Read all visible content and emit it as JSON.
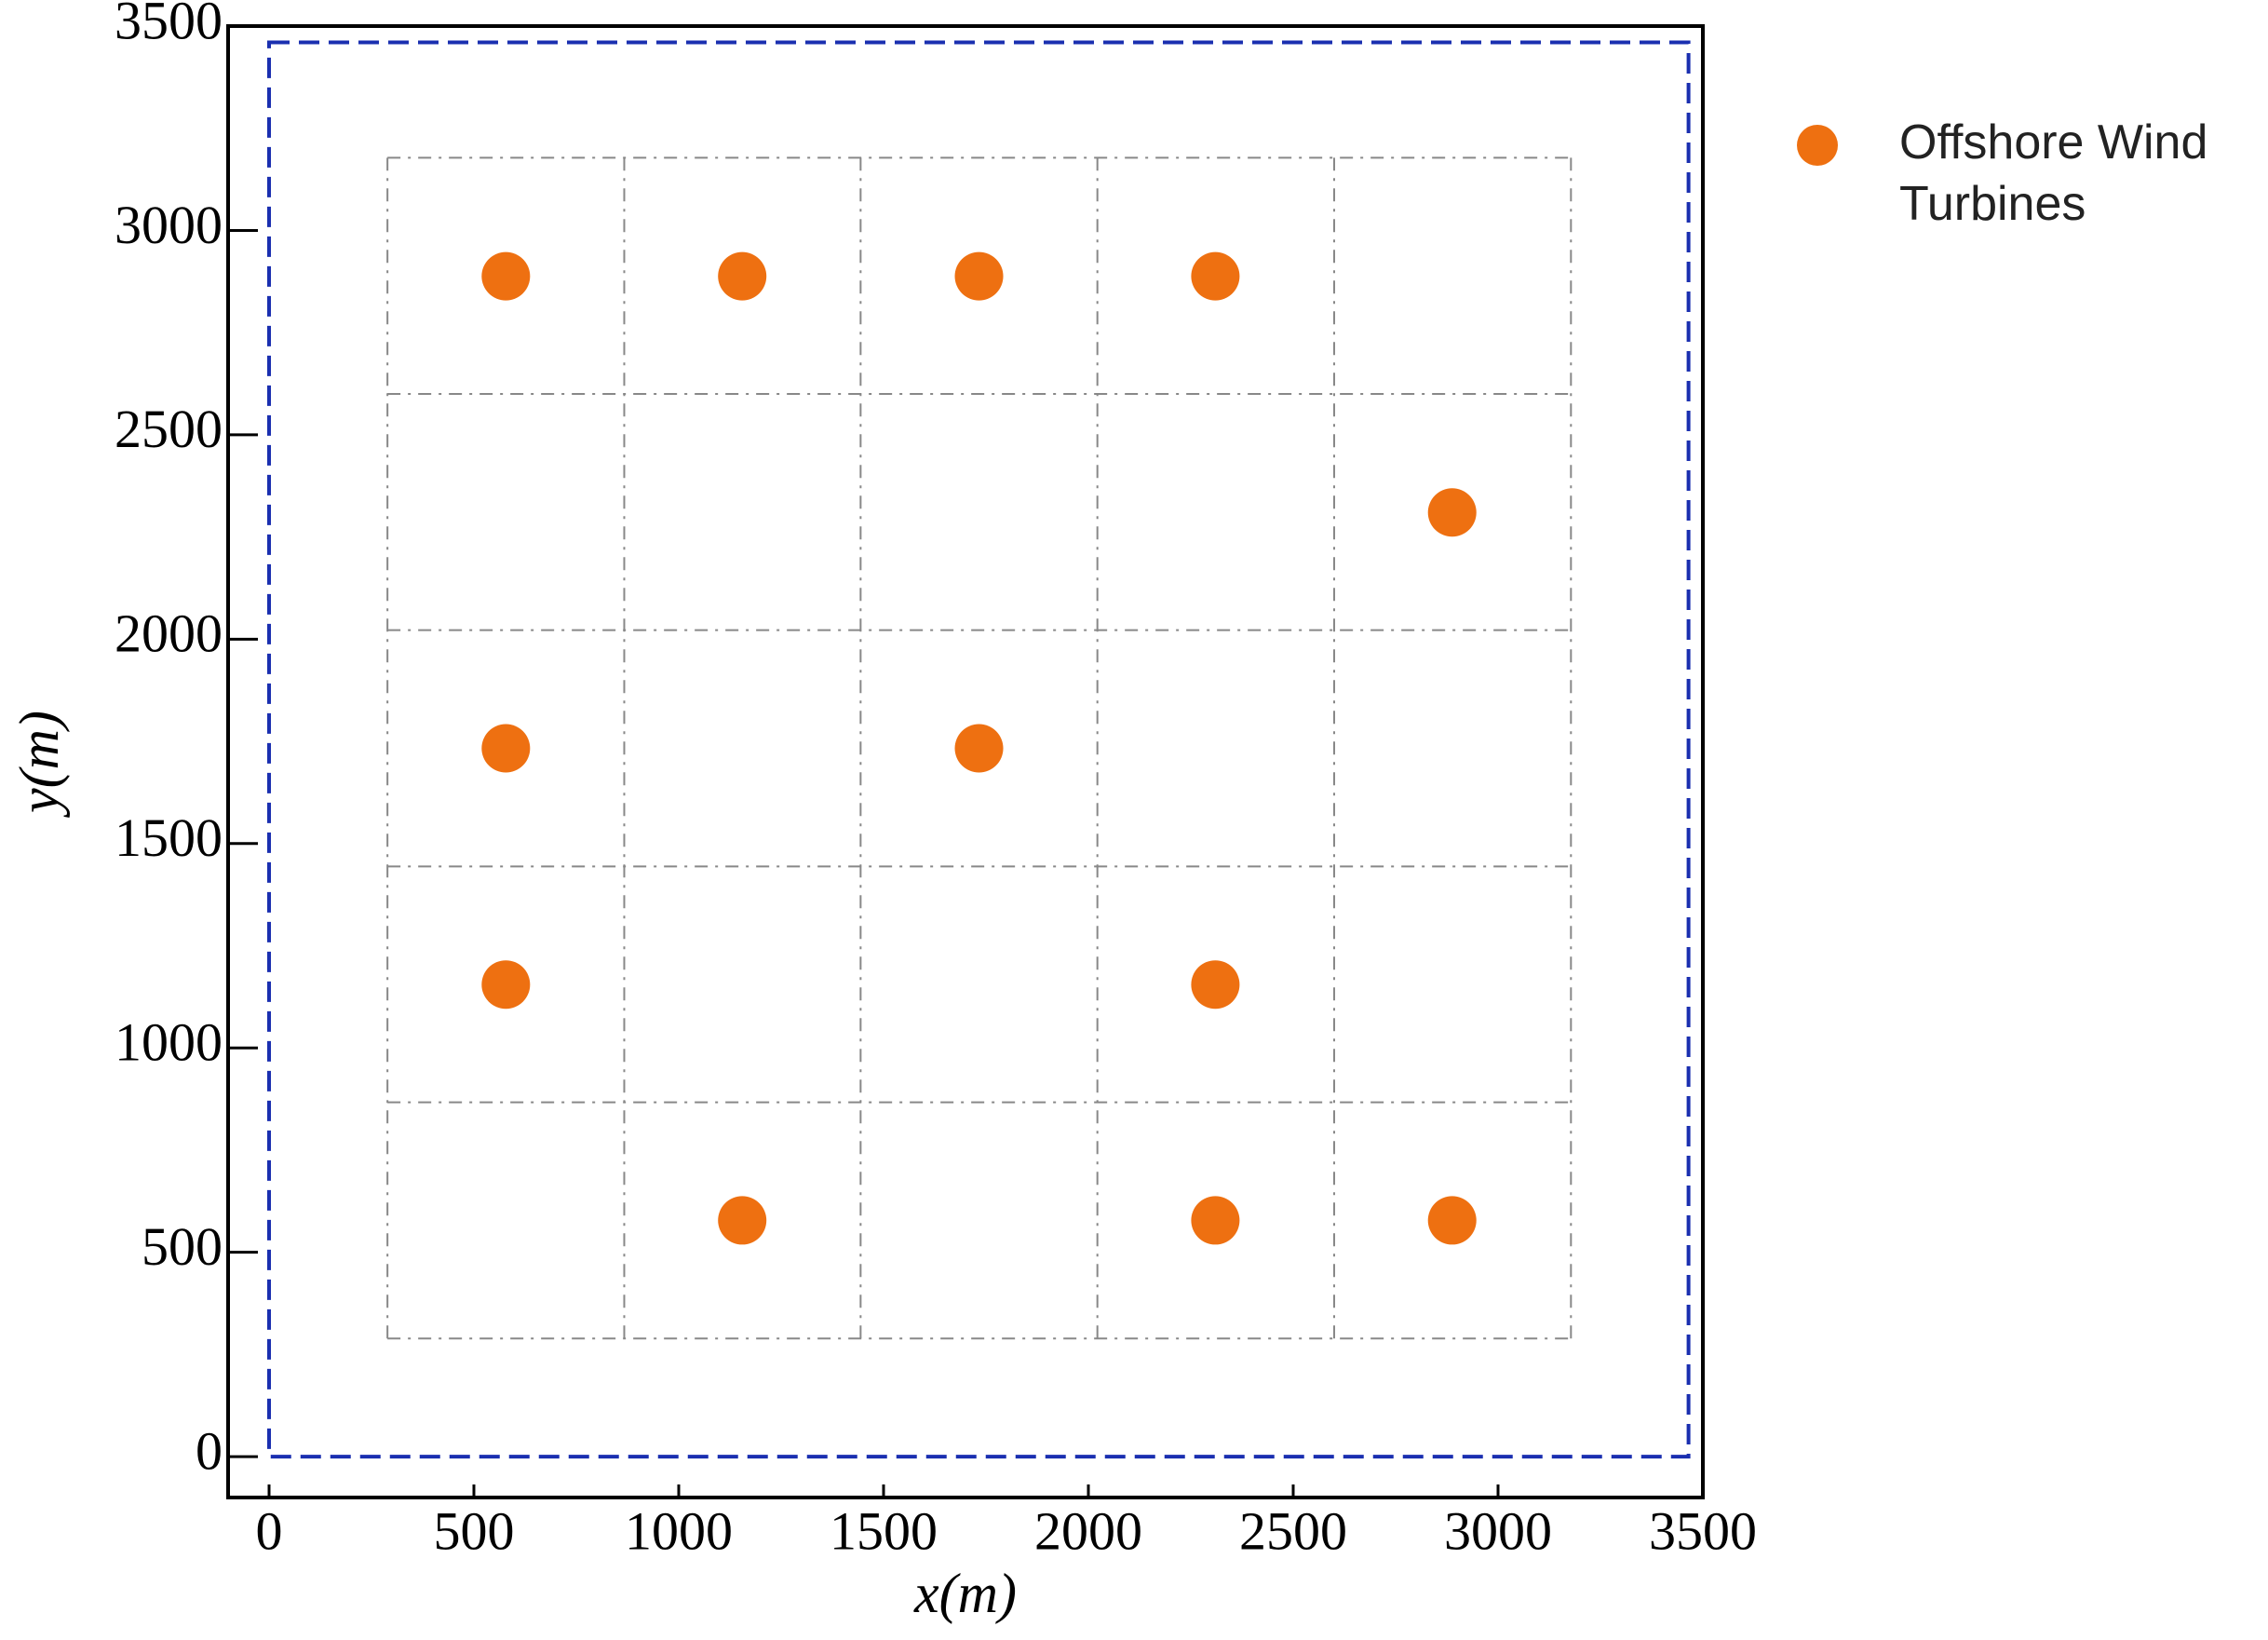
{
  "chart_data": {
    "type": "scatter",
    "xlabel": "x(m)",
    "ylabel": "y(m)",
    "xlim": [
      -100,
      3500
    ],
    "ylim": [
      -100,
      3500
    ],
    "xticks": [
      0,
      500,
      1000,
      1500,
      2000,
      2500,
      3000,
      3500
    ],
    "yticks": [
      0,
      500,
      1000,
      1500,
      2000,
      2500,
      3000,
      3500
    ],
    "cell_lines": [
      289,
      867,
      1444,
      2022,
      2600,
      3178
    ],
    "boundary": {
      "x": [
        0,
        3465
      ],
      "y": [
        0,
        3460
      ]
    },
    "series": [
      {
        "name": "Offshore Wind Turbines",
        "color": "#ee7011",
        "x": [
          578,
          1155,
          1733,
          2310,
          2888,
          578,
          1733,
          578,
          2310,
          1155,
          2310,
          2888
        ],
        "values": [
          2888,
          2888,
          2888,
          2888,
          2310,
          1733,
          1733,
          1155,
          1155,
          578,
          578,
          578
        ]
      }
    ],
    "legend": "upper right"
  }
}
